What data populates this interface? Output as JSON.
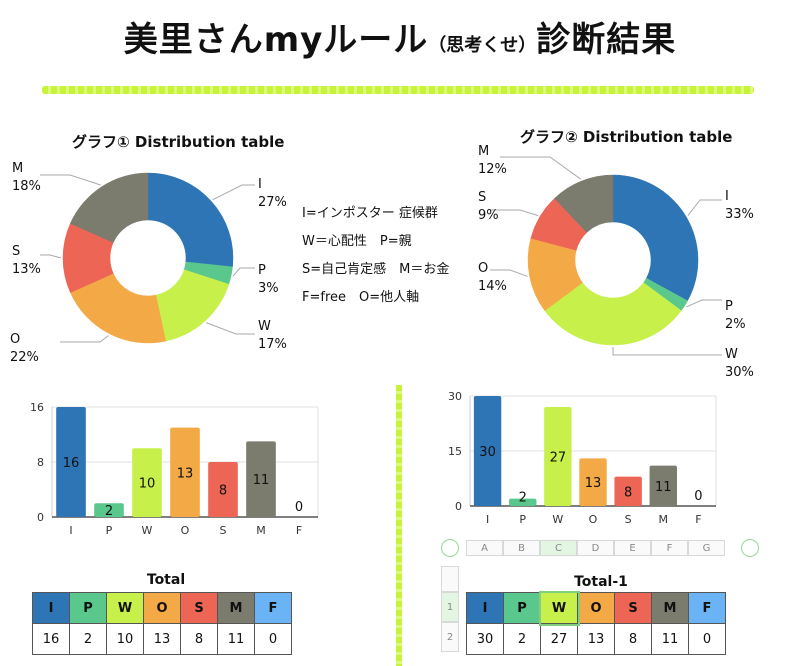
{
  "page": {
    "title_main_a": "美里さんmyルール",
    "title_small": "（思考くせ）",
    "title_main_b": "診断結果"
  },
  "legend_text": {
    "line1": "I=インポスター 症候群",
    "line2": "W＝心配性　P=親",
    "line3": "S=自己肯定感　M＝お金",
    "line4": "F=free　O=他人軸"
  },
  "colors": {
    "I": "#2e75b6",
    "P": "#5ac88c",
    "W": "#c8f04a",
    "O": "#f4a947",
    "S": "#ec6555",
    "M": "#7b7b6e",
    "F": "#6ab3f5"
  },
  "pie1_labels": [
    {
      "key": "I",
      "name": "I",
      "pct": "27%"
    },
    {
      "key": "P",
      "name": "P",
      "pct": "3%"
    },
    {
      "key": "W",
      "name": "W",
      "pct": "17%"
    },
    {
      "key": "O",
      "name": "O",
      "pct": "22%"
    },
    {
      "key": "S",
      "name": "S",
      "pct": "13%"
    },
    {
      "key": "M",
      "name": "M",
      "pct": "18%"
    }
  ],
  "pie2_labels": [
    {
      "key": "I",
      "name": "I",
      "pct": "33%"
    },
    {
      "key": "P",
      "name": "P",
      "pct": "2%"
    },
    {
      "key": "W",
      "name": "W",
      "pct": "30%"
    },
    {
      "key": "O",
      "name": "O",
      "pct": "14%"
    },
    {
      "key": "S",
      "name": "S",
      "pct": "9%"
    },
    {
      "key": "M",
      "name": "M",
      "pct": "12%"
    }
  ],
  "table1": {
    "title": "Total",
    "headers": [
      "I",
      "P",
      "W",
      "O",
      "S",
      "M",
      "F"
    ],
    "values": [
      "16",
      "2",
      "10",
      "13",
      "8",
      "11",
      "0"
    ]
  },
  "table2": {
    "title": "Total-1",
    "headers": [
      "I",
      "P",
      "W",
      "O",
      "S",
      "M",
      "F"
    ],
    "values": [
      "30",
      "2",
      "27",
      "13",
      "8",
      "11",
      "0"
    ],
    "row_labels": [
      "1",
      "2"
    ],
    "col_labels": [
      "A",
      "B",
      "C",
      "D",
      "E",
      "F",
      "G"
    ]
  },
  "chart_data": [
    {
      "type": "pie",
      "title": "グラフ① Distribution table",
      "categories": [
        "I",
        "P",
        "W",
        "O",
        "S",
        "M"
      ],
      "values": [
        16,
        2,
        10,
        13,
        8,
        11
      ]
    },
    {
      "type": "pie",
      "title": "グラフ② Distribution table",
      "categories": [
        "I",
        "P",
        "W",
        "O",
        "S",
        "M"
      ],
      "values": [
        30,
        2,
        27,
        13,
        8,
        11
      ]
    },
    {
      "type": "bar",
      "title": "",
      "categories": [
        "I",
        "P",
        "W",
        "O",
        "S",
        "M",
        "F"
      ],
      "values": [
        16,
        2,
        10,
        13,
        8,
        11,
        0
      ],
      "yticks": [
        "0",
        "8",
        "16"
      ],
      "ylim": [
        0,
        16
      ]
    },
    {
      "type": "bar",
      "title": "",
      "categories": [
        "I",
        "P",
        "W",
        "O",
        "S",
        "M",
        "F"
      ],
      "values": [
        30,
        2,
        27,
        13,
        8,
        11,
        0
      ],
      "yticks": [
        "0",
        "15",
        "30"
      ],
      "ylim": [
        0,
        30
      ]
    }
  ]
}
